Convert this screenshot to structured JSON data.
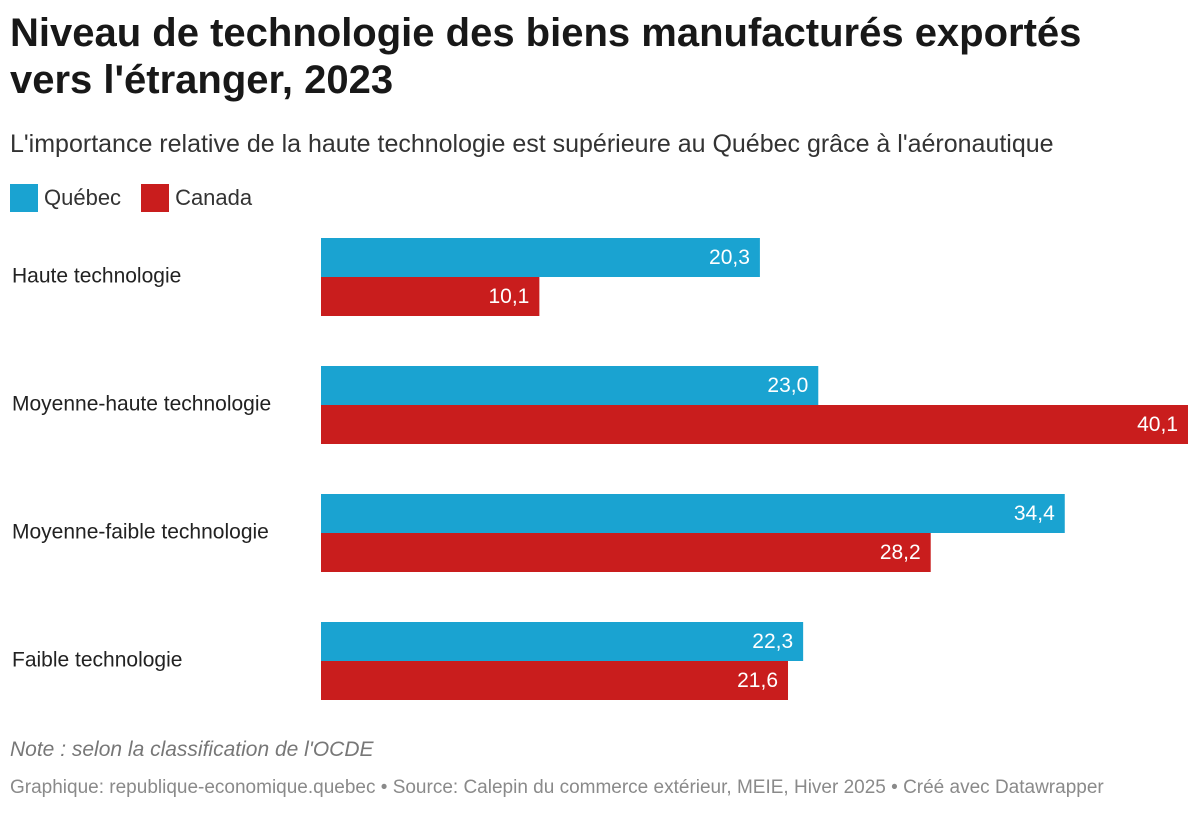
{
  "title": "Niveau de technologie des biens manufacturés exportés vers l'étranger, 2023",
  "subtitle": "L'importance relative de la haute technologie est supérieure au Québec grâce à l'aéronautique",
  "legend": [
    {
      "label": "Québec",
      "color": "#1aa3d1"
    },
    {
      "label": "Canada",
      "color": "#c91d1d"
    }
  ],
  "chart_data": {
    "type": "bar",
    "orientation": "horizontal",
    "categories": [
      "Haute technologie",
      "Moyenne-haute technologie",
      "Moyenne-faible technologie",
      "Faible technologie"
    ],
    "series": [
      {
        "name": "Québec",
        "color": "#1aa3d1",
        "values": [
          20.3,
          23.0,
          34.4,
          22.3
        ],
        "labels": [
          "20,3",
          "23,0",
          "34,4",
          "22,3"
        ]
      },
      {
        "name": "Canada",
        "color": "#c91d1d",
        "values": [
          10.1,
          40.1,
          28.2,
          21.6
        ],
        "labels": [
          "10,1",
          "40,1",
          "28,2",
          "21,6"
        ]
      }
    ],
    "xlim": [
      0,
      40.1
    ],
    "title": "Niveau de technologie des biens manufacturés exportés vers l'étranger, 2023",
    "xlabel": "",
    "ylabel": "",
    "legend_position": "top-left",
    "grid": false
  },
  "note": "Note : selon la classification de l'OCDE",
  "footer": "Graphique: republique-economique.quebec • Source: Calepin du commerce extérieur, MEIE, Hiver 2025 • Créé avec Datawrapper"
}
